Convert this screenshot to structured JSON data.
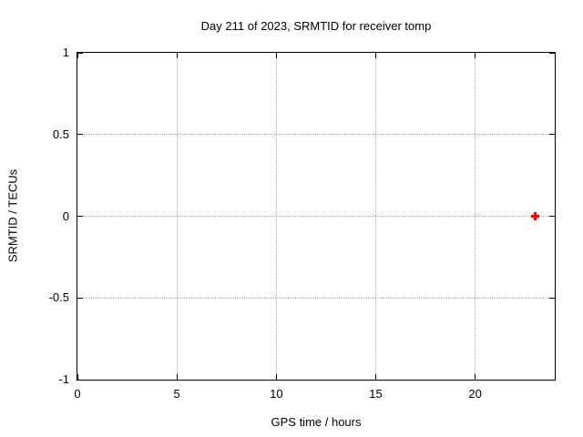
{
  "chart_data": {
    "type": "scatter",
    "title": "Day 211 of 2023, SRMTID for receiver tomp",
    "xlabel": "GPS time / hours",
    "ylabel": "SRMTID / TECUs",
    "xlim": [
      0,
      24
    ],
    "ylim": [
      -1,
      1
    ],
    "grid": true,
    "legend": "none",
    "xticks": [
      {
        "value": 0,
        "label": "0"
      },
      {
        "value": 5,
        "label": "5"
      },
      {
        "value": 10,
        "label": "10"
      },
      {
        "value": 15,
        "label": "15"
      },
      {
        "value": 20,
        "label": "20"
      }
    ],
    "yticks": [
      {
        "value": -1,
        "label": "-1"
      },
      {
        "value": -0.5,
        "label": "-0.5"
      },
      {
        "value": 0,
        "label": "0"
      },
      {
        "value": 0.5,
        "label": "0.5"
      },
      {
        "value": 1,
        "label": "1"
      }
    ],
    "series": [
      {
        "name": "SRMTID",
        "marker": "plus",
        "color": "#ff0000",
        "points": [
          {
            "x": 23,
            "y": 0
          }
        ]
      }
    ],
    "colors": {
      "grid": "#a8a8a8",
      "axis": "#000000",
      "text": "#000000",
      "background": "#ffffff"
    }
  }
}
